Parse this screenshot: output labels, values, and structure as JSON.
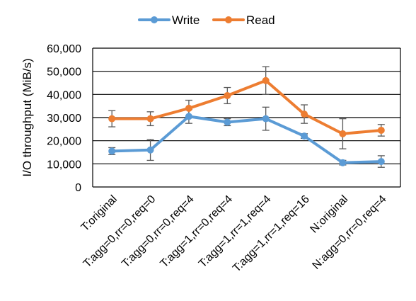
{
  "chart_data": {
    "type": "line",
    "title": "",
    "xlabel": "",
    "ylabel": "I/O throughput (MiB/s)",
    "ylim": [
      0,
      60000
    ],
    "yticks": [
      "0",
      "10,000",
      "20,000",
      "30,000",
      "40,000",
      "50,000",
      "60,000"
    ],
    "ytick_values": [
      0,
      10000,
      20000,
      30000,
      40000,
      50000,
      60000
    ],
    "grid": true,
    "legend_position": "top",
    "categories": [
      "T:original",
      "T:agg=0,rr=0,req=0",
      "T:agg=0,rr=0,req=4",
      "T:agg=1,rr=0,req=4",
      "T:agg=1,rr=1,req=4",
      "T:agg=1,rr=1,req=16",
      "N:original",
      "N:agg=0,rr=0,req=4"
    ],
    "series": [
      {
        "name": "Write",
        "color": "#5B9BD5",
        "values": [
          15500,
          16000,
          30500,
          28000,
          29500,
          22000,
          10500,
          11000
        ],
        "error": [
          1500,
          4500,
          3000,
          1500,
          5000,
          1000,
          1000,
          2500
        ]
      },
      {
        "name": "Read",
        "color": "#ED7D31",
        "values": [
          29500,
          29500,
          34000,
          39500,
          46000,
          31500,
          23000,
          24500
        ],
        "error": [
          3500,
          3000,
          3500,
          3500,
          6000,
          4000,
          6500,
          2500
        ]
      }
    ]
  }
}
